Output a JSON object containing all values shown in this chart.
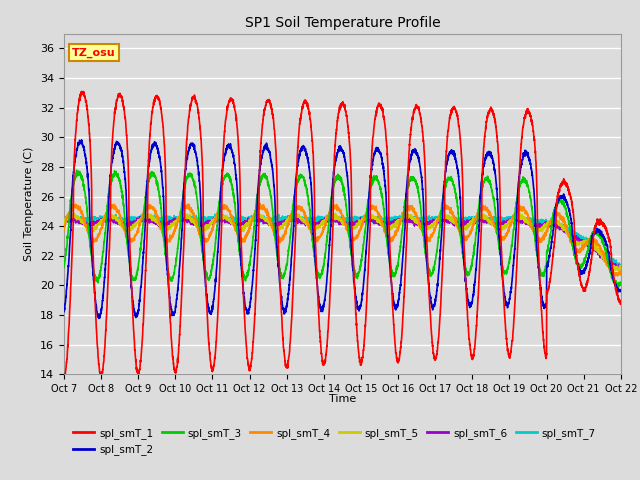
{
  "title": "SP1 Soil Temperature Profile",
  "xlabel": "Time",
  "ylabel": "Soil Temperature (C)",
  "ylim": [
    14,
    37
  ],
  "background_color": "#dcdcdc",
  "plot_bg_color": "#dcdcdc",
  "annotation_text": "TZ_osu",
  "annotation_bg": "#ffff99",
  "annotation_border": "#cc8800",
  "xtick_labels": [
    "Oct 7",
    "Oct 8",
    "Oct 9",
    "Oct 10",
    "Oct 11",
    "Oct 12",
    "Oct 13",
    "Oct 14",
    "Oct 15",
    "Oct 16",
    "Oct 17",
    "Oct 18",
    "Oct 19",
    "Oct 20",
    "Oct 21",
    "Oct 22"
  ],
  "ytick_labels": [
    14,
    16,
    18,
    20,
    22,
    24,
    26,
    28,
    30,
    32,
    34,
    36
  ],
  "series_colors": [
    "#ff0000",
    "#0000cc",
    "#00cc00",
    "#ff8800",
    "#cccc00",
    "#9900cc",
    "#00cccc"
  ],
  "series_names": [
    "spl_smT_1",
    "spl_smT_2",
    "spl_smT_3",
    "spl_smT_4",
    "spl_smT_5",
    "spl_smT_6",
    "spl_smT_7"
  ],
  "n_days": 15,
  "pts_per_day": 240
}
